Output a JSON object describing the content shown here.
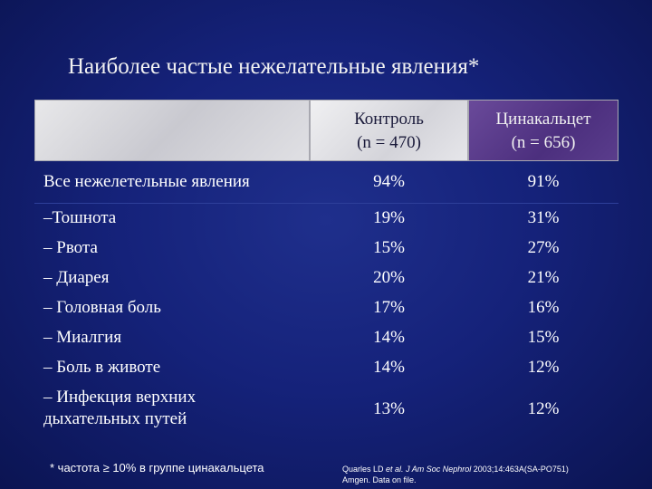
{
  "title": "Наиболее частые нежелательные явления*",
  "table": {
    "headers": {
      "control_line1": "Контроль",
      "control_line2": "(n = 470)",
      "cinacalcet_line1": "Цинакальцет",
      "cinacalcet_line2": "(n = 656)"
    },
    "rows": [
      {
        "label": "Все нежелетельные явления",
        "control": "94%",
        "cinacalcet": "91%"
      },
      {
        "label": "–Тошнота",
        "control": "19%",
        "cinacalcet": "31%"
      },
      {
        "label": "– Рвота",
        "control": "15%",
        "cinacalcet": "27%"
      },
      {
        "label": "– Диарея",
        "control": "20%",
        "cinacalcet": "21%"
      },
      {
        "label": "– Головная боль",
        "control": "17%",
        "cinacalcet": "16%"
      },
      {
        "label": "– Миалгия",
        "control": "14%",
        "cinacalcet": "15%"
      },
      {
        "label": "– Боль в животе",
        "control": "14%",
        "cinacalcet": "12%"
      },
      {
        "label_line1": "– Инфекция верхних",
        "label_line2": "дыхательных путей",
        "control": "13%",
        "cinacalcet": "12%"
      }
    ]
  },
  "footnote": "* частота ≥ 10% в группе цинакальцета",
  "reference": {
    "authors": "Quarles LD",
    "etal": "et al.",
    "journal": "J Am Soc Nephrol",
    "citation": "2003;14:463A(SA-PO751)",
    "line2": "Amgen. Data on file."
  }
}
